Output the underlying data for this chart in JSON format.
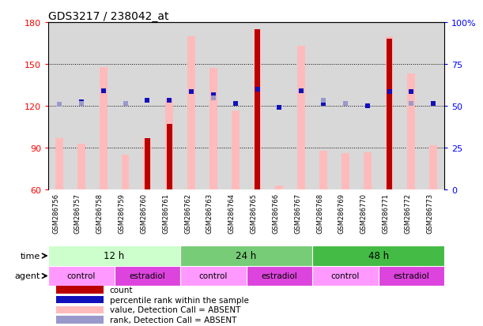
{
  "title": "GDS3217 / 238042_at",
  "samples": [
    "GSM286756",
    "GSM286757",
    "GSM286758",
    "GSM286759",
    "GSM286760",
    "GSM286761",
    "GSM286762",
    "GSM286763",
    "GSM286764",
    "GSM286765",
    "GSM286766",
    "GSM286767",
    "GSM286768",
    "GSM286769",
    "GSM286770",
    "GSM286771",
    "GSM286772",
    "GSM286773"
  ],
  "pink_bars": [
    97,
    93,
    148,
    85,
    97,
    125,
    170,
    147,
    117,
    175,
    63,
    163,
    88,
    86,
    87,
    170,
    143,
    92
  ],
  "red_bars": [
    0,
    0,
    0,
    0,
    97,
    107,
    0,
    0,
    0,
    175,
    0,
    0,
    0,
    0,
    0,
    168,
    0,
    0
  ],
  "blue_squares": [
    0,
    123,
    131,
    122,
    124,
    124,
    130,
    128,
    122,
    132,
    119,
    131,
    122,
    0,
    120,
    130,
    130,
    122
  ],
  "lavender_squares": [
    121,
    122,
    0,
    122,
    0,
    0,
    0,
    126,
    0,
    0,
    0,
    0,
    124,
    122,
    0,
    0,
    122,
    0
  ],
  "time_groups": [
    {
      "label": "12 h",
      "start": 0,
      "end": 6,
      "color": "#ccffcc"
    },
    {
      "label": "24 h",
      "start": 6,
      "end": 12,
      "color": "#77cc77"
    },
    {
      "label": "48 h",
      "start": 12,
      "end": 18,
      "color": "#44bb44"
    }
  ],
  "agent_groups": [
    {
      "label": "control",
      "start": 0,
      "end": 3
    },
    {
      "label": "estradiol",
      "start": 3,
      "end": 6
    },
    {
      "label": "control",
      "start": 6,
      "end": 9
    },
    {
      "label": "estradiol",
      "start": 9,
      "end": 12
    },
    {
      "label": "control",
      "start": 12,
      "end": 15
    },
    {
      "label": "estradiol",
      "start": 15,
      "end": 18
    }
  ],
  "control_color": "#ff99ff",
  "estradiol_color": "#dd44dd",
  "ylim_left": [
    60,
    180
  ],
  "ylim_right": [
    0,
    100
  ],
  "yticks_left": [
    60,
    90,
    120,
    150,
    180
  ],
  "yticks_right": [
    0,
    25,
    50,
    75,
    100
  ],
  "plot_bg_color": "#d8d8d8",
  "sample_bg_color": "#c8c8c8",
  "bar_width": 0.35,
  "red_bar_width": 0.25,
  "pink_color": "#ffbbbb",
  "red_color": "#bb0000",
  "blue_color": "#1111bb",
  "lavender_color": "#9999cc",
  "legend_labels": [
    "count",
    "percentile rank within the sample",
    "value, Detection Call = ABSENT",
    "rank, Detection Call = ABSENT"
  ]
}
